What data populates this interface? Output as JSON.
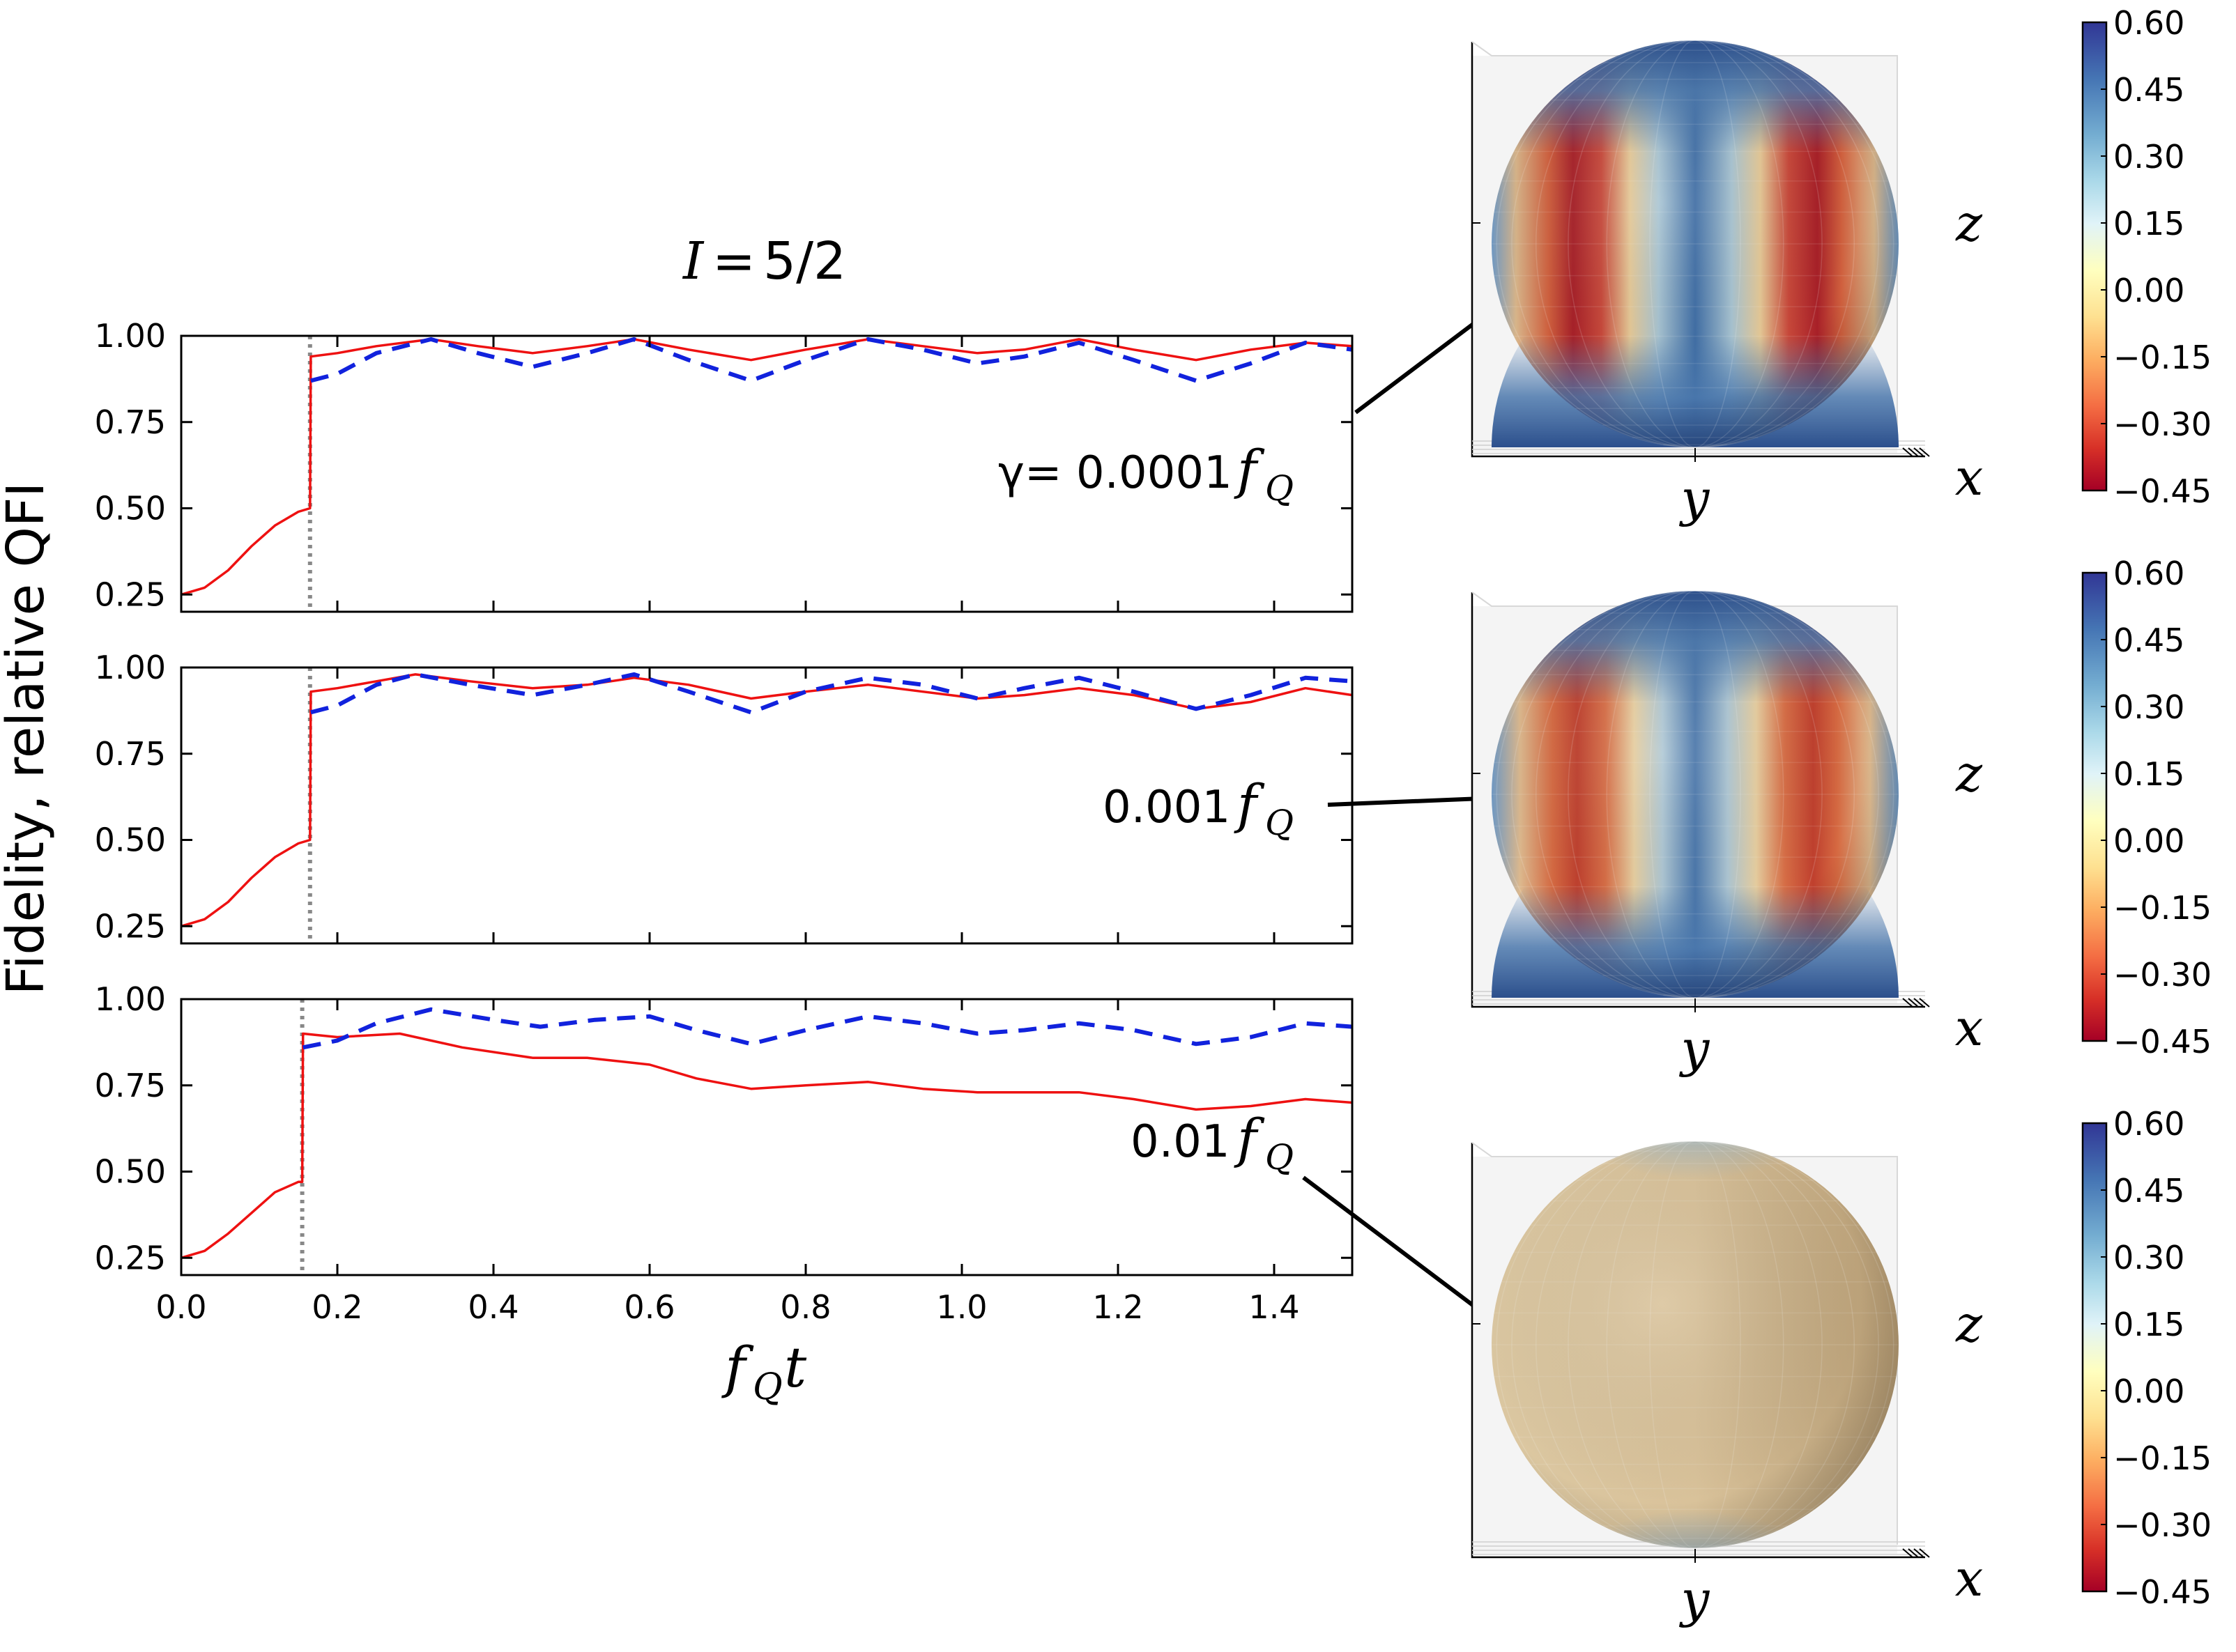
{
  "figure": {
    "title_math": "I",
    "title_eq": "=",
    "title_value": "5/2",
    "ylabel": "Fidelity, relative QFI",
    "xlabel_f": "f",
    "xlabel_sub": "Q",
    "xlabel_t": "t"
  },
  "colors": {
    "fidelity": "#ee1111",
    "qfi": "#1122dd",
    "marker": "#888888",
    "cmap": [
      "#a50026",
      "#d73027",
      "#f46d43",
      "#fdae61",
      "#fee090",
      "#ffffbf",
      "#e0f3f8",
      "#abd9e9",
      "#74add1",
      "#4575b4",
      "#313695"
    ]
  },
  "chart_data": [
    {
      "type": "line",
      "panel": "top",
      "gamma_label": "γ= 0.0001",
      "gamma_unit": "f",
      "gamma_sub": "Q",
      "marker_x": 0.165,
      "x_range": [
        0.0,
        1.5
      ],
      "ylim": [
        0.2,
        1.0
      ],
      "xticks": [
        "0.0",
        "0.2",
        "0.4",
        "0.6",
        "0.8",
        "1.0",
        "1.2",
        "1.4"
      ],
      "yticks": [
        "0.25",
        "0.50",
        "0.75",
        "1.00"
      ],
      "series": [
        {
          "name": "fidelity",
          "style": "solid",
          "x": [
            0.0,
            0.03,
            0.06,
            0.09,
            0.12,
            0.15,
            0.165,
            0.166,
            0.2,
            0.25,
            0.32,
            0.38,
            0.45,
            0.52,
            0.58,
            0.65,
            0.73,
            0.8,
            0.88,
            0.95,
            1.02,
            1.08,
            1.15,
            1.22,
            1.3,
            1.37,
            1.44,
            1.5
          ],
          "y": [
            0.25,
            0.27,
            0.32,
            0.39,
            0.45,
            0.49,
            0.5,
            0.94,
            0.95,
            0.97,
            0.99,
            0.97,
            0.95,
            0.97,
            0.99,
            0.96,
            0.93,
            0.96,
            0.99,
            0.97,
            0.95,
            0.96,
            0.99,
            0.96,
            0.93,
            0.96,
            0.98,
            0.97
          ]
        },
        {
          "name": "QFI",
          "style": "dashed",
          "x": [
            0.166,
            0.2,
            0.25,
            0.32,
            0.38,
            0.45,
            0.52,
            0.58,
            0.65,
            0.73,
            0.8,
            0.88,
            0.95,
            1.02,
            1.08,
            1.15,
            1.22,
            1.3,
            1.37,
            1.44,
            1.5
          ],
          "y": [
            0.87,
            0.89,
            0.95,
            0.99,
            0.95,
            0.91,
            0.95,
            0.99,
            0.93,
            0.87,
            0.93,
            0.99,
            0.96,
            0.92,
            0.94,
            0.98,
            0.93,
            0.87,
            0.92,
            0.98,
            0.96
          ]
        }
      ]
    },
    {
      "type": "line",
      "panel": "middle",
      "gamma_label": "0.001",
      "gamma_unit": "f",
      "gamma_sub": "Q",
      "marker_x": 0.165,
      "x_range": [
        0.0,
        1.5
      ],
      "ylim": [
        0.2,
        1.0
      ],
      "xticks": [
        "0.0",
        "0.2",
        "0.4",
        "0.6",
        "0.8",
        "1.0",
        "1.2",
        "1.4"
      ],
      "yticks": [
        "0.25",
        "0.50",
        "0.75",
        "1.00"
      ],
      "series": [
        {
          "name": "fidelity",
          "style": "solid",
          "x": [
            0.0,
            0.03,
            0.06,
            0.09,
            0.12,
            0.15,
            0.165,
            0.166,
            0.2,
            0.25,
            0.3,
            0.37,
            0.45,
            0.52,
            0.58,
            0.65,
            0.73,
            0.8,
            0.88,
            0.95,
            1.02,
            1.08,
            1.15,
            1.22,
            1.3,
            1.37,
            1.44,
            1.5
          ],
          "y": [
            0.25,
            0.27,
            0.32,
            0.39,
            0.45,
            0.49,
            0.5,
            0.93,
            0.94,
            0.96,
            0.98,
            0.96,
            0.94,
            0.95,
            0.97,
            0.95,
            0.91,
            0.93,
            0.95,
            0.93,
            0.91,
            0.92,
            0.94,
            0.92,
            0.88,
            0.9,
            0.94,
            0.92
          ]
        },
        {
          "name": "QFI",
          "style": "dashed",
          "x": [
            0.166,
            0.2,
            0.25,
            0.3,
            0.37,
            0.45,
            0.52,
            0.58,
            0.65,
            0.73,
            0.8,
            0.88,
            0.95,
            1.02,
            1.08,
            1.15,
            1.22,
            1.3,
            1.37,
            1.44,
            1.5
          ],
          "y": [
            0.87,
            0.89,
            0.95,
            0.98,
            0.95,
            0.92,
            0.95,
            0.98,
            0.93,
            0.87,
            0.93,
            0.97,
            0.95,
            0.91,
            0.94,
            0.97,
            0.93,
            0.88,
            0.92,
            0.97,
            0.96
          ]
        }
      ]
    },
    {
      "type": "line",
      "panel": "bottom",
      "gamma_label": "0.01",
      "gamma_unit": "f",
      "gamma_sub": "Q",
      "marker_x": 0.155,
      "x_range": [
        0.0,
        1.5
      ],
      "ylim": [
        0.2,
        1.0
      ],
      "xticks": [
        "0.0",
        "0.2",
        "0.4",
        "0.6",
        "0.8",
        "1.0",
        "1.2",
        "1.4"
      ],
      "yticks": [
        "0.25",
        "0.50",
        "0.75",
        "1.00"
      ],
      "series": [
        {
          "name": "fidelity",
          "style": "solid",
          "x": [
            0.0,
            0.03,
            0.06,
            0.09,
            0.12,
            0.15,
            0.155,
            0.156,
            0.2,
            0.28,
            0.36,
            0.45,
            0.52,
            0.6,
            0.66,
            0.73,
            0.8,
            0.88,
            0.95,
            1.02,
            1.08,
            1.15,
            1.22,
            1.3,
            1.37,
            1.44,
            1.5
          ],
          "y": [
            0.25,
            0.27,
            0.32,
            0.38,
            0.44,
            0.47,
            0.47,
            0.9,
            0.89,
            0.9,
            0.86,
            0.83,
            0.83,
            0.81,
            0.77,
            0.74,
            0.75,
            0.76,
            0.74,
            0.73,
            0.73,
            0.73,
            0.71,
            0.68,
            0.69,
            0.71,
            0.7
          ]
        },
        {
          "name": "QFI",
          "style": "dashed",
          "x": [
            0.156,
            0.2,
            0.25,
            0.32,
            0.4,
            0.46,
            0.53,
            0.6,
            0.66,
            0.73,
            0.8,
            0.88,
            0.95,
            1.02,
            1.08,
            1.15,
            1.22,
            1.3,
            1.37,
            1.44,
            1.5
          ],
          "y": [
            0.86,
            0.88,
            0.93,
            0.97,
            0.94,
            0.92,
            0.94,
            0.95,
            0.91,
            0.87,
            0.91,
            0.95,
            0.93,
            0.9,
            0.91,
            0.93,
            0.91,
            0.87,
            0.89,
            0.93,
            0.92
          ]
        }
      ]
    },
    {
      "type": "heatmap",
      "panel": "sphere-1",
      "pattern": "strong-lobes",
      "axes": {
        "y": "y",
        "x": "x",
        "z": "z"
      },
      "colorbar": {
        "ticks": [
          "0.60",
          "0.45",
          "0.30",
          "0.15",
          "0.00",
          "−0.15",
          "−0.30",
          "−0.45"
        ],
        "range": [
          -0.45,
          0.6
        ]
      }
    },
    {
      "type": "heatmap",
      "panel": "sphere-2",
      "pattern": "medium-lobes",
      "axes": {
        "y": "y",
        "x": "x",
        "z": "z"
      },
      "colorbar": {
        "ticks": [
          "0.60",
          "0.45",
          "0.30",
          "0.15",
          "0.00",
          "−0.15",
          "−0.30",
          "−0.45"
        ],
        "range": [
          -0.45,
          0.6
        ]
      }
    },
    {
      "type": "heatmap",
      "panel": "sphere-3",
      "pattern": "washed-out",
      "axes": {
        "y": "y",
        "x": "x",
        "z": "z"
      },
      "colorbar": {
        "ticks": [
          "0.60",
          "0.45",
          "0.30",
          "0.15",
          "0.00",
          "−0.15",
          "−0.30",
          "−0.45"
        ],
        "range": [
          -0.45,
          0.6
        ]
      }
    }
  ]
}
